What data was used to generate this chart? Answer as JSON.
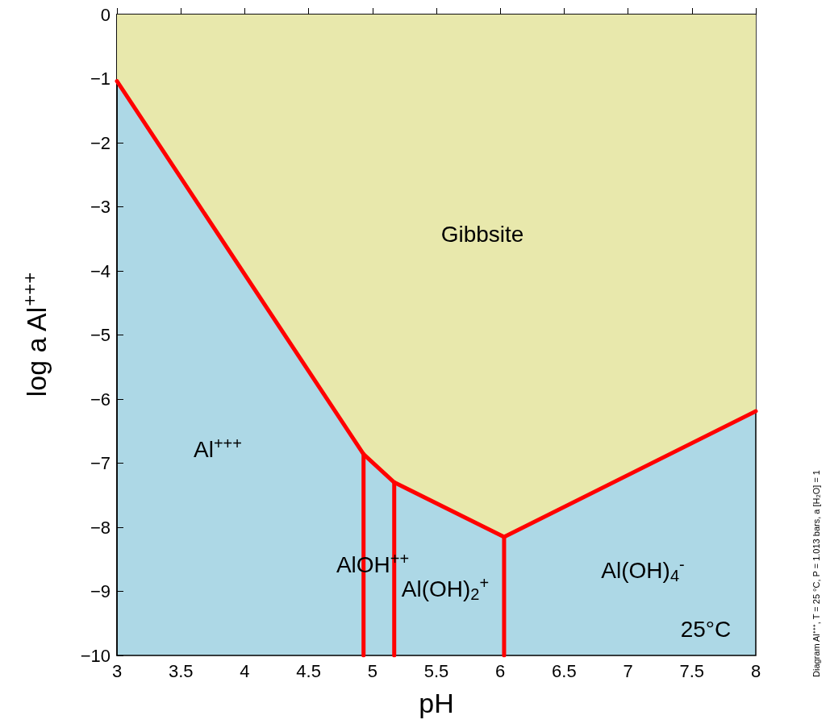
{
  "chart_data": {
    "type": "line",
    "xlabel": "pH",
    "ylabel": "log a Al$^{+++}$",
    "xlim": [
      3,
      8
    ],
    "ylim": [
      -10,
      0
    ],
    "xticks": [
      3,
      3.5,
      4,
      4.5,
      5,
      5.5,
      6,
      6.5,
      7,
      7.5,
      8
    ],
    "yticks": [
      {
        "value": -10,
        "label": "−10"
      },
      {
        "value": -9,
        "label": "−9"
      },
      {
        "value": -8,
        "label": "−8"
      },
      {
        "value": -7,
        "label": "−7"
      },
      {
        "value": -6,
        "label": "−6"
      },
      {
        "value": -5,
        "label": "−5"
      },
      {
        "value": -4,
        "label": "−4"
      },
      {
        "value": -3,
        "label": "−3"
      },
      {
        "value": -2,
        "label": "−2"
      },
      {
        "value": -1,
        "label": "−1"
      },
      0
    ],
    "grid": false,
    "marker": "none",
    "line_style": "solid",
    "series": [
      {
        "color": "#ff0000",
        "x": [
          4.93,
          4.93
        ],
        "values": [
          -10,
          -6.86
        ]
      },
      {
        "color": "#ff0000",
        "x": [
          5.17,
          5.17
        ],
        "values": [
          -10,
          -7.3
        ]
      },
      {
        "color": "#ff0000",
        "x": [
          6.03,
          6.03
        ],
        "values": [
          -10,
          -8.15
        ]
      },
      {
        "type": "area",
        "color": "#e8e8ac",
        "x": [
          3,
          4.93,
          5.17,
          6.03,
          8
        ],
        "values": [
          -1.04,
          -6.86,
          -7.3,
          -8.15,
          -6.19
        ]
      }
    ],
    "annotations": [
      "Gibbsite",
      "Al$^{+++}$",
      "AlOH$^{++}$",
      "Al(OH)$_{2}$$^{+}$",
      "Al(OH)$_{4}$$^{-}$",
      "25°C",
      "Diagram Al⁺⁺⁺, T = 25 °C, P = 1.013 bars, a [H₂O] = 1"
    ]
  }
}
